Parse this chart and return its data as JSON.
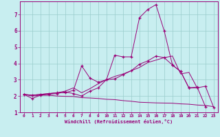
{
  "title": "",
  "xlabel": "Windchill (Refroidissement éolien,°C)",
  "background_color": "#c8eef0",
  "line_color": "#990077",
  "grid_color": "#99cccc",
  "xlim": [
    -0.5,
    23.5
  ],
  "ylim": [
    1,
    7.8
  ],
  "yticks": [
    1,
    2,
    3,
    4,
    5,
    6,
    7
  ],
  "xticks": [
    0,
    1,
    2,
    3,
    4,
    5,
    6,
    7,
    8,
    9,
    10,
    11,
    12,
    13,
    14,
    15,
    16,
    17,
    18,
    19,
    20,
    21,
    22,
    23
  ],
  "curves": [
    {
      "x": [
        0,
        1,
        2,
        3,
        4,
        5,
        6,
        7,
        8,
        9,
        10,
        11,
        12,
        13,
        14,
        15,
        16,
        17,
        18,
        19,
        20,
        21,
        22,
        23
      ],
      "y": [
        2.1,
        1.85,
        2.05,
        2.1,
        2.15,
        2.25,
        2.15,
        2.0,
        2.3,
        2.5,
        3.0,
        4.5,
        4.4,
        4.4,
        6.8,
        7.3,
        7.6,
        6.0,
        3.9,
        3.5,
        2.5,
        2.5,
        2.6,
        1.3
      ],
      "has_markers": true
    },
    {
      "x": [
        0,
        1,
        2,
        3,
        4,
        5,
        6,
        7,
        8,
        9,
        10,
        11,
        12,
        13,
        14,
        15,
        16,
        17,
        18,
        19,
        20,
        21,
        22
      ],
      "y": [
        2.1,
        2.05,
        2.1,
        2.15,
        2.2,
        2.2,
        2.35,
        3.85,
        3.1,
        2.85,
        3.0,
        3.05,
        3.3,
        3.55,
        3.95,
        4.15,
        4.45,
        4.35,
        3.9,
        3.5,
        2.5,
        2.55,
        1.35
      ],
      "has_markers": true
    },
    {
      "x": [
        0,
        1,
        2,
        3,
        4,
        5,
        6,
        7,
        8,
        9,
        10,
        11,
        12,
        13,
        14,
        15,
        16,
        17,
        18,
        19,
        20,
        21
      ],
      "y": [
        2.1,
        2.05,
        2.1,
        2.15,
        2.2,
        2.3,
        2.5,
        2.2,
        2.45,
        2.75,
        3.0,
        3.2,
        3.35,
        3.55,
        3.75,
        4.05,
        4.2,
        4.35,
        4.45,
        3.35,
        3.45,
        2.5
      ],
      "has_markers": false
    },
    {
      "x": [
        0,
        1,
        2,
        3,
        4,
        5,
        6,
        7,
        8,
        9,
        10,
        11,
        12,
        13,
        14,
        15,
        16,
        17,
        18,
        19,
        20,
        21,
        22,
        23
      ],
      "y": [
        2.1,
        2.0,
        2.05,
        2.05,
        2.0,
        1.98,
        1.97,
        1.9,
        1.88,
        1.85,
        1.8,
        1.78,
        1.72,
        1.68,
        1.62,
        1.6,
        1.58,
        1.57,
        1.56,
        1.52,
        1.5,
        1.45,
        1.42,
        1.35
      ],
      "has_markers": false
    }
  ]
}
